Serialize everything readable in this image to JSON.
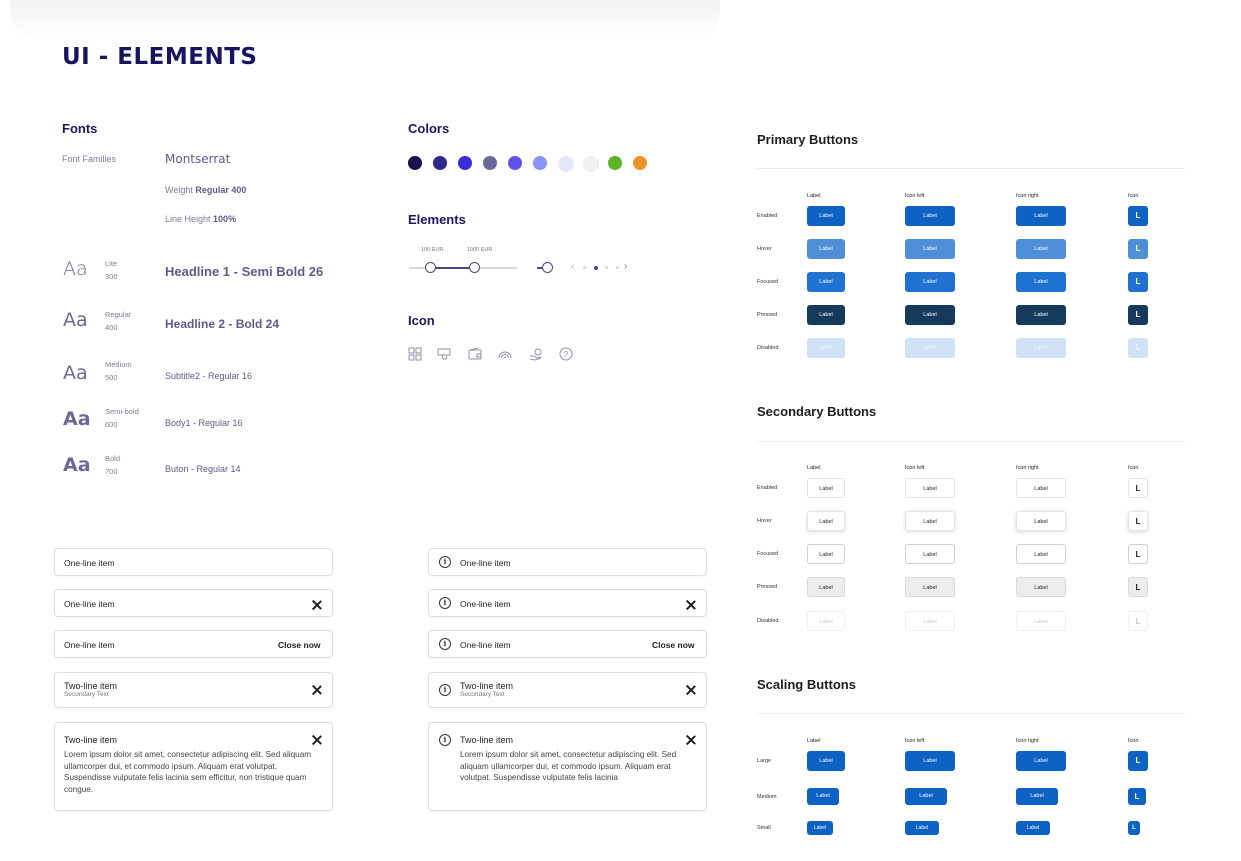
{
  "page_title": "UI - ELEMENTS",
  "fonts": {
    "title": "Fonts",
    "families_label": "Font Families",
    "family_name": "Montserrat",
    "weight_prefix": "Weight ",
    "weight_value": "Regular 400",
    "lineheight_prefix": "Line Height ",
    "lineheight_value": "100%",
    "samples": [
      {
        "aa": "Aa",
        "weight_name": "Lite",
        "weight_num": "300",
        "style": "Headline 1 - Semi Bold 26"
      },
      {
        "aa": "Aa",
        "weight_name": "Regular",
        "weight_num": "400",
        "style": "Headline 2 - Bold  24"
      },
      {
        "aa": "Aa",
        "weight_name": "Medium",
        "weight_num": "500",
        "style": "Subtitle2 -  Regular 16"
      },
      {
        "aa": "Aa",
        "weight_name": "Semi-bold",
        "weight_num": "600",
        "style": "Body1 -  Regular 16"
      },
      {
        "aa": "Aa",
        "weight_name": "Bold",
        "weight_num": "700",
        "style": "Buton - Regular 14"
      }
    ]
  },
  "colors": {
    "title": "Colors",
    "swatches": [
      "#15124d",
      "#2d2a8c",
      "#3a2fd6",
      "#6a6a9a",
      "#5b52e8",
      "#8c93f2",
      "#e4e7fb",
      "#f1f1f3",
      "#5bb32a",
      "#f0922a"
    ]
  },
  "elements": {
    "title": "Elements",
    "slider_min_label": "100 EUR",
    "slider_max_label": "1000 EUR",
    "pager_prev": "‹",
    "pager_next": "›",
    "pager_count": 4,
    "pager_active": 2
  },
  "icons": {
    "title": "Icon",
    "names": [
      "grid-icon",
      "hand-card-icon",
      "wallet-icon",
      "rainbow-icon",
      "hand-coin-icon",
      "help-circle-icon"
    ],
    "help_glyph": "?"
  },
  "list_left": [
    {
      "title": "One-line item"
    },
    {
      "title": "One-line item"
    },
    {
      "title": "One-line item",
      "action": "Close now"
    },
    {
      "title": "Two-line item",
      "secondary": "Secondary Text"
    },
    {
      "title": "Two-line item",
      "body": "Lorem ipsum dolor sit amet, consectetur adipiscing elit. Sed aliquam ullamcorper dui, et commodo ipsum. Aliquam erat volutpat. Suspendisse vulputate felis lacinia sem efficitur, non tristique quam congue."
    }
  ],
  "list_right": [
    {
      "title": "One-line item",
      "info": "i"
    },
    {
      "title": "One-line item",
      "info": "i"
    },
    {
      "title": "One-line item",
      "action": "Close now",
      "info": "i"
    },
    {
      "title": "Two-line item",
      "secondary": "Secondary Text",
      "info": "i"
    },
    {
      "title": "Two-line item",
      "body": "Lorem ipsum dolor sit amet, consectetur adipiscing elit. Sed aliquam ullamcorper dui, et commodo ipsum. Aliquam erat volutpat. Suspendisse vulputate felis lacinia",
      "info": "i"
    }
  ],
  "buttons": {
    "columns": [
      "Label",
      "Icon left",
      "Icon right",
      "Icon"
    ],
    "button_label": "Label",
    "icon_label": "L",
    "primary": {
      "title": "Primary Buttons",
      "states": [
        "Enabled",
        "Hover",
        "Focused",
        "Pressed",
        "Disabled"
      ]
    },
    "secondary": {
      "title": "Secondary Buttons",
      "states": [
        "Enabled",
        "Hover",
        "Focused",
        "Pressed",
        "Disabled"
      ]
    },
    "scaling": {
      "title": "Scaling Buttons",
      "sizes": [
        "Large",
        "Medium",
        "Small"
      ]
    },
    "colors": {
      "primary": "#0d62c4",
      "primary_pressed": "#163a5c",
      "primary_disabled": "#cfe2f6"
    }
  }
}
